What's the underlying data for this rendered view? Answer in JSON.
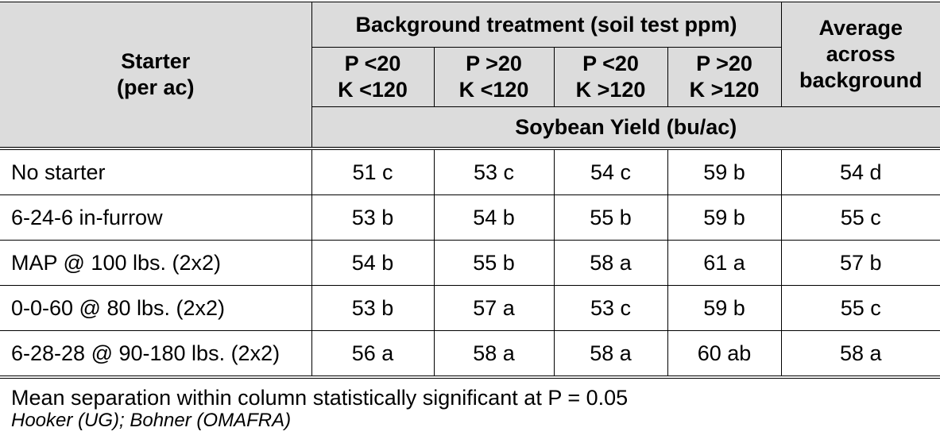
{
  "header": {
    "starter": "Starter",
    "starter_unit": "(per ac)",
    "background": "Background treatment (soil test ppm)",
    "average": "Average across background",
    "yield": "Soybean Yield (bu/ac)",
    "columns": [
      {
        "p": "P <20",
        "k": "K <120"
      },
      {
        "p": "P >20",
        "k": "K <120"
      },
      {
        "p": "P <20",
        "k": "K >120"
      },
      {
        "p": "P >20",
        "k": "K >120"
      }
    ]
  },
  "rows": [
    {
      "starter": "No starter",
      "values": [
        "51 c",
        "53 c",
        "54 c",
        "59 b"
      ],
      "average": "54 d"
    },
    {
      "starter": "6-24-6 in-furrow",
      "values": [
        "53 b",
        "54 b",
        "55 b",
        "59 b"
      ],
      "average": "55 c"
    },
    {
      "starter": "MAP @ 100 lbs. (2x2)",
      "values": [
        "54 b",
        "55 b",
        "58 a",
        "61 a"
      ],
      "average": "57 b"
    },
    {
      "starter": "0-0-60 @ 80 lbs. (2x2)",
      "values": [
        "53 b",
        "57 a",
        "53 c",
        "59 b"
      ],
      "average": "55 c"
    },
    {
      "starter": "6-28-28 @ 90-180 lbs. (2x2)",
      "values": [
        "56 a",
        "58 a",
        "58 a",
        "60 ab"
      ],
      "average": "58 a"
    }
  ],
  "footer": {
    "note": "Mean separation within column statistically significant at P = 0.05",
    "source": "Hooker (UG); Bohner (OMAFRA)"
  }
}
